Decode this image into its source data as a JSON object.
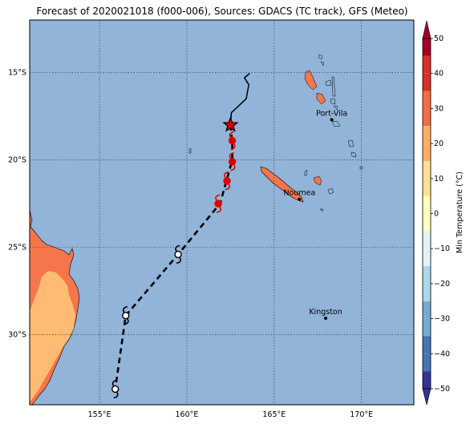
{
  "title": "Forecast of 2020021018 (f000-006), Sources: GDACS (TC track), GFS (Meteo)",
  "map": {
    "lon_range": [
      151,
      173
    ],
    "lat_range": [
      -34,
      -12
    ],
    "lon_ticks": [
      {
        "value": 155,
        "label": "155°E"
      },
      {
        "value": 160,
        "label": "160°E"
      },
      {
        "value": 165,
        "label": "165°E"
      },
      {
        "value": 170,
        "label": "170°E"
      }
    ],
    "lat_ticks": [
      {
        "value": -15,
        "label": "15°S"
      },
      {
        "value": -20,
        "label": "20°S"
      },
      {
        "value": -25,
        "label": "25°S"
      },
      {
        "value": -30,
        "label": "30°S"
      }
    ],
    "gridlines": true,
    "ocean_color": "#91b4d8",
    "land_color_warm": "#f4764a",
    "land_color_hot": "#ffba74"
  },
  "cities": [
    {
      "name": "Port-Vila",
      "lon": 168.3,
      "lat": -17.7
    },
    {
      "name": "Noumea",
      "lon": 166.45,
      "lat": -22.25
    },
    {
      "name": "Kingston",
      "lon": 167.95,
      "lat": -29.05
    }
  ],
  "track": {
    "current_position": {
      "lon": 162.5,
      "lat": -18.0
    },
    "observed_path": [
      {
        "lon": 162.5,
        "lat": -18.0
      },
      {
        "lon": 162.55,
        "lat": -17.3
      },
      {
        "lon": 163.4,
        "lat": -16.5
      },
      {
        "lon": 163.55,
        "lat": -15.7
      },
      {
        "lon": 163.3,
        "lat": -15.3
      },
      {
        "lon": 163.6,
        "lat": -15.05
      }
    ],
    "forecast_path": [
      {
        "lon": 162.5,
        "lat": -18.0
      },
      {
        "lon": 162.6,
        "lat": -19.0
      },
      {
        "lon": 162.6,
        "lat": -20.0
      },
      {
        "lon": 162.3,
        "lat": -21.1
      },
      {
        "lon": 161.9,
        "lat": -22.5
      },
      {
        "lon": 159.5,
        "lat": -25.4
      },
      {
        "lon": 156.5,
        "lat": -28.9
      },
      {
        "lon": 155.9,
        "lat": -33.1
      }
    ],
    "storm_symbols": [
      {
        "lon": 162.6,
        "lat": -18.9,
        "type": "hurricane"
      },
      {
        "lon": 162.6,
        "lat": -20.1,
        "type": "hurricane"
      },
      {
        "lon": 162.3,
        "lat": -21.2,
        "type": "hurricane"
      },
      {
        "lon": 161.8,
        "lat": -22.5,
        "type": "hurricane"
      },
      {
        "lon": 159.5,
        "lat": -25.4,
        "type": "storm"
      },
      {
        "lon": 156.5,
        "lat": -28.9,
        "type": "storm"
      },
      {
        "lon": 155.9,
        "lat": -33.1,
        "type": "storm"
      }
    ]
  },
  "colorbar": {
    "label": "Min Temperature (°C)",
    "ticks": [
      50,
      40,
      30,
      20,
      10,
      0,
      -10,
      -20,
      -30,
      -40,
      -50
    ],
    "colors": [
      "#a50026",
      "#d73027",
      "#f46d43",
      "#fdae61",
      "#fee090",
      "#ffffbf",
      "#e0f3f8",
      "#abd9e9",
      "#74add1",
      "#4575b4",
      "#313695"
    ]
  }
}
